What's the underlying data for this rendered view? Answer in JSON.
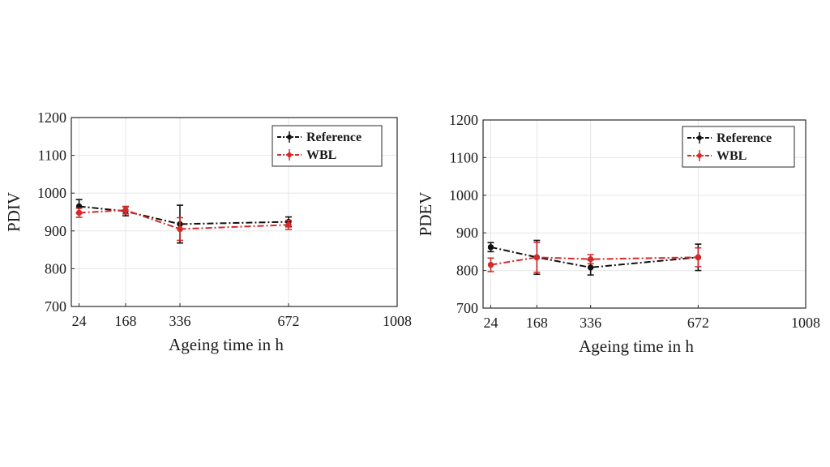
{
  "colors": {
    "reference": "#111111",
    "wbl": "#d42a2a",
    "grid": "#e6e6e6",
    "axis": "#2a2a2a"
  },
  "chart_data": [
    {
      "type": "line",
      "xlabel": "Ageing time in h",
      "ylabel": "PDIV",
      "xticks": [
        24,
        168,
        336,
        672,
        1008
      ],
      "yticks": [
        700,
        800,
        900,
        1000,
        1100,
        1200
      ],
      "xlim": [
        0,
        1008
      ],
      "ylim": [
        700,
        1200
      ],
      "grid": true,
      "legend_position": "top-right",
      "x": [
        24,
        168,
        336,
        672
      ],
      "series": [
        {
          "name": "Reference",
          "values": [
            965,
            952,
            918,
            924
          ],
          "errors": [
            18,
            12,
            50,
            13
          ],
          "color_key": "reference"
        },
        {
          "name": "WBL",
          "values": [
            948,
            955,
            905,
            916
          ],
          "errors": [
            12,
            10,
            30,
            12
          ],
          "color_key": "wbl"
        }
      ]
    },
    {
      "type": "line",
      "xlabel": "Ageing time in h",
      "ylabel": "PDEV",
      "xticks": [
        24,
        168,
        336,
        672,
        1008
      ],
      "yticks": [
        700,
        800,
        900,
        1000,
        1100,
        1200
      ],
      "xlim": [
        0,
        1008
      ],
      "ylim": [
        700,
        1200
      ],
      "grid": true,
      "legend_position": "top-right",
      "x": [
        24,
        168,
        336,
        672
      ],
      "series": [
        {
          "name": "Reference",
          "values": [
            862,
            835,
            808,
            835
          ],
          "errors": [
            12,
            45,
            20,
            35
          ],
          "color_key": "reference"
        },
        {
          "name": "WBL",
          "values": [
            815,
            835,
            830,
            835
          ],
          "errors": [
            18,
            40,
            12,
            25
          ],
          "color_key": "wbl"
        }
      ]
    }
  ]
}
